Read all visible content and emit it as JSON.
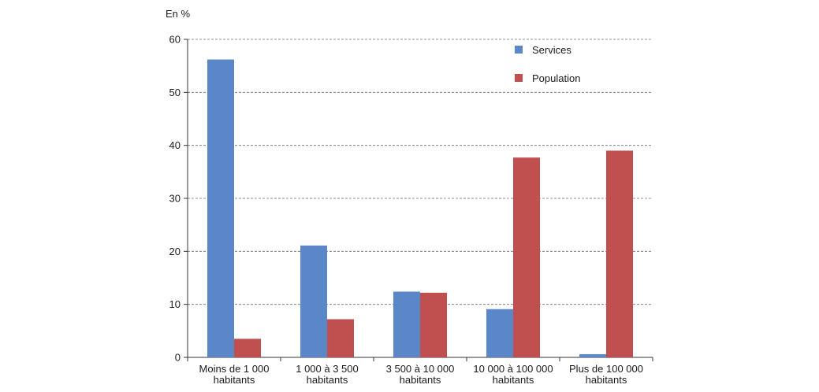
{
  "chart_data": {
    "type": "bar",
    "unit_label": "En %",
    "categories": [
      [
        "Moins de 1 000",
        "habitants"
      ],
      [
        "1 000 à 3 500",
        "habitants"
      ],
      [
        "3 500 à 10 000",
        "habitants"
      ],
      [
        "10 000 à 100 000",
        "habitants"
      ],
      [
        "Plus de 100 000",
        "habitants"
      ]
    ],
    "series": [
      {
        "name": "Services",
        "color": "#5b87c8",
        "values": [
          56.2,
          21.1,
          12.4,
          9.1,
          0.6
        ]
      },
      {
        "name": "Population",
        "color": "#bf504f",
        "values": [
          3.5,
          7.2,
          12.2,
          37.7,
          39.0
        ]
      }
    ],
    "ylim": [
      0,
      60
    ],
    "yticks": [
      0,
      10,
      20,
      30,
      40,
      50,
      60
    ],
    "grid": true,
    "legend_position": "top-right"
  }
}
